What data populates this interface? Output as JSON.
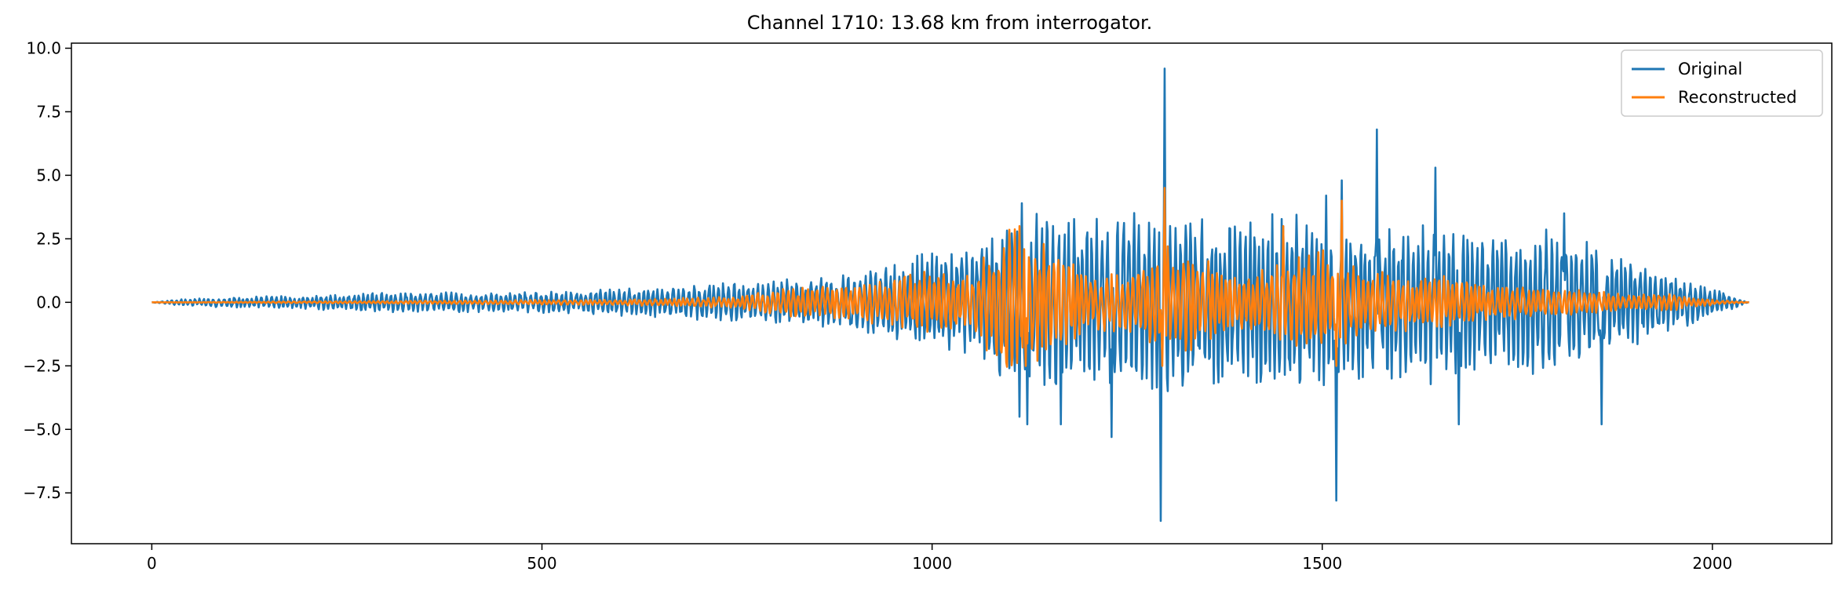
{
  "chart_data": {
    "type": "line",
    "title": "Channel 1710: 13.68 km from interrogator.",
    "xlabel": "",
    "ylabel": "",
    "xlim": [
      -103,
      2153
    ],
    "ylim": [
      -9.5,
      10.2
    ],
    "x_ticks": [
      0,
      500,
      1000,
      1500,
      2000
    ],
    "x_tick_labels": [
      "0",
      "500",
      "1000",
      "1500",
      "2000"
    ],
    "y_ticks": [
      10.0,
      7.5,
      5.0,
      2.5,
      0.0,
      -2.5,
      -5.0,
      -7.5
    ],
    "y_tick_labels": [
      "10.0",
      "7.5",
      "5.0",
      "2.5",
      "0.0",
      "−2.5",
      "−5.0",
      "−7.5"
    ],
    "grid": false,
    "legend_position": "top-right",
    "n_samples": 2048,
    "envelope_notes": "Signals are oscillatory; values below are the sampled envelope (approximate peak amplitudes) with notable extrema.",
    "series": [
      {
        "name": "Original",
        "color": "#1f77b4",
        "envelope": {
          "x": [
            0,
            30,
            100,
            200,
            300,
            400,
            500,
            600,
            700,
            800,
            900,
            1000,
            1050,
            1100,
            1150,
            1200,
            1250,
            1300,
            1350,
            1400,
            1450,
            1500,
            1550,
            1600,
            1650,
            1700,
            1750,
            1800,
            1850,
            1900,
            1950,
            2000,
            2047
          ],
          "amplitude": [
            0.0,
            0.1,
            0.2,
            0.25,
            0.35,
            0.35,
            0.4,
            0.5,
            0.6,
            0.8,
            1.0,
            1.8,
            2.0,
            3.0,
            3.2,
            3.0,
            3.2,
            3.5,
            3.0,
            3.0,
            3.2,
            3.0,
            3.0,
            2.7,
            3.0,
            2.5,
            2.5,
            2.6,
            2.0,
            1.5,
            1.0,
            0.5,
            0.0
          ]
        },
        "peaks": [
          {
            "x": 1115,
            "y": 3.9
          },
          {
            "x": 1112,
            "y": -4.5
          },
          {
            "x": 1122,
            "y": -4.8
          },
          {
            "x": 1165,
            "y": -4.8
          },
          {
            "x": 1230,
            "y": -5.3
          },
          {
            "x": 1293,
            "y": -8.6
          },
          {
            "x": 1298,
            "y": 9.2
          },
          {
            "x": 1450,
            "y": 3.0
          },
          {
            "x": 1505,
            "y": 4.2
          },
          {
            "x": 1518,
            "y": -7.8
          },
          {
            "x": 1525,
            "y": 4.8
          },
          {
            "x": 1570,
            "y": 6.8
          },
          {
            "x": 1645,
            "y": 5.3
          },
          {
            "x": 1675,
            "y": -4.8
          },
          {
            "x": 1810,
            "y": 3.5
          },
          {
            "x": 1858,
            "y": -4.8
          }
        ]
      },
      {
        "name": "Reconstructed",
        "color": "#ff7f0e",
        "envelope": {
          "x": [
            0,
            300,
            600,
            750,
            800,
            900,
            1000,
            1050,
            1100,
            1150,
            1200,
            1250,
            1300,
            1350,
            1400,
            1450,
            1500,
            1550,
            1600,
            1650,
            1700,
            1750,
            1800,
            1850,
            1900,
            1950,
            2000,
            2047
          ],
          "amplitude": [
            0.0,
            0.05,
            0.1,
            0.2,
            0.5,
            0.6,
            1.2,
            1.0,
            2.8,
            2.0,
            1.0,
            1.0,
            2.0,
            1.5,
            1.0,
            1.5,
            1.8,
            1.2,
            1.0,
            1.0,
            0.7,
            0.6,
            0.5,
            0.4,
            0.3,
            0.3,
            0.1,
            0.0
          ]
        },
        "peaks": [
          {
            "x": 1298,
            "y": 4.5
          },
          {
            "x": 1295,
            "y": -2.5
          },
          {
            "x": 1450,
            "y": 3.0
          },
          {
            "x": 1525,
            "y": 4.0
          },
          {
            "x": 1518,
            "y": -2.5
          },
          {
            "x": 1120,
            "y": -2.5
          },
          {
            "x": 1112,
            "y": 3.0
          }
        ]
      }
    ]
  }
}
